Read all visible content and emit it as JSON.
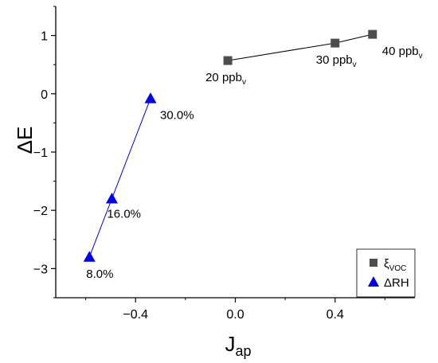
{
  "chart_data": {
    "type": "scatter",
    "xlabel": "J",
    "xlabel_sub": "ap",
    "ylabel": "ΔE",
    "xlim": [
      -0.72,
      0.72
    ],
    "ylim": [
      -3.5,
      1.5
    ],
    "xticks": [
      -0.4,
      0.0,
      0.4
    ],
    "xtick_labels": [
      "−0.4",
      "0.0",
      "0.4"
    ],
    "yticks": [
      -3,
      -2,
      -1,
      0,
      1
    ],
    "ytick_labels": [
      "−3",
      "−2",
      "−1",
      "0",
      "1"
    ],
    "grid": false,
    "legend_position": "bottom-right",
    "series": [
      {
        "name": "ξ",
        "name_sub": "VOC",
        "marker": "square",
        "color": "#4d4d4d",
        "line_color": "#000000",
        "points": [
          {
            "x": -0.03,
            "y": 0.57,
            "label": "20 ppb",
            "label_sub": "v"
          },
          {
            "x": 0.4,
            "y": 0.87,
            "label": "30 ppb",
            "label_sub": "v"
          },
          {
            "x": 0.55,
            "y": 1.02,
            "label": "40 ppb",
            "label_sub": "v"
          }
        ]
      },
      {
        "name": "ΔRH",
        "name_sub": "",
        "marker": "triangle",
        "color": "#0000ee",
        "line_color": "#0000ee",
        "points": [
          {
            "x": -0.585,
            "y": -2.8,
            "label": "8.0%",
            "label_sub": ""
          },
          {
            "x": -0.495,
            "y": -1.8,
            "label": "16.0%",
            "label_sub": ""
          },
          {
            "x": -0.34,
            "y": -0.08,
            "label": "30.0%",
            "label_sub": ""
          }
        ]
      }
    ]
  }
}
